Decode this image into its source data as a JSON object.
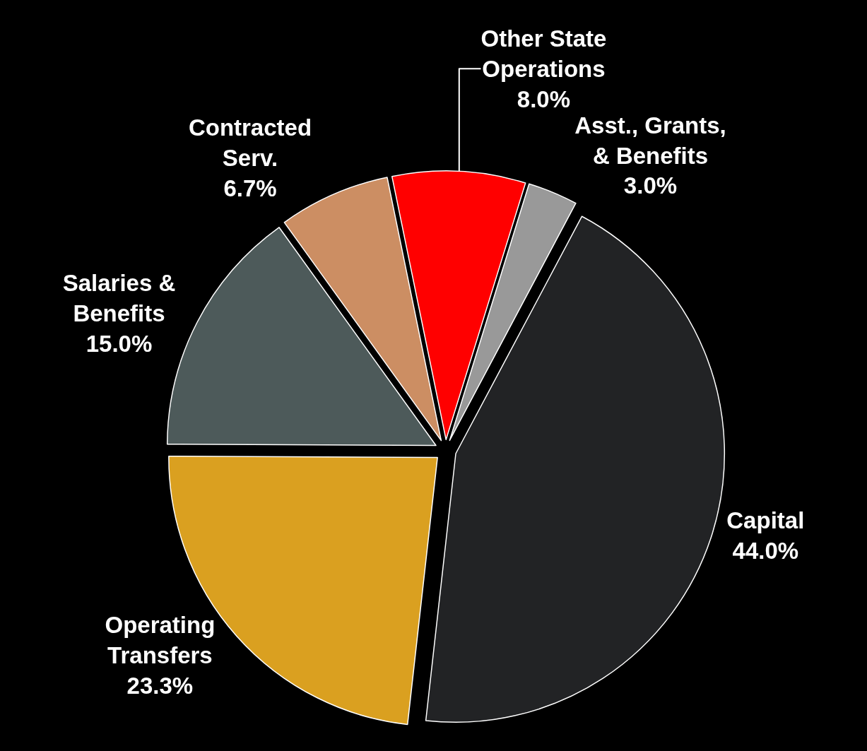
{
  "chart_data": {
    "type": "pie",
    "categories": [
      "Capital",
      "Operating Transfers",
      "Salaries & Benefits",
      "Contracted Serv.",
      "Other State Operations",
      "Asst., Grants, & Benefits"
    ],
    "values": [
      44.0,
      23.3,
      15.0,
      6.7,
      8.0,
      3.0
    ],
    "value_labels": [
      "44.0%",
      "23.3%",
      "15.0%",
      "6.7%",
      "8.0%",
      "3.0%"
    ],
    "colors": [
      "#222325",
      "#daa020",
      "#4d5a5a",
      "#cc8e63",
      "#ff0000",
      "#999999"
    ],
    "legend": false
  }
}
